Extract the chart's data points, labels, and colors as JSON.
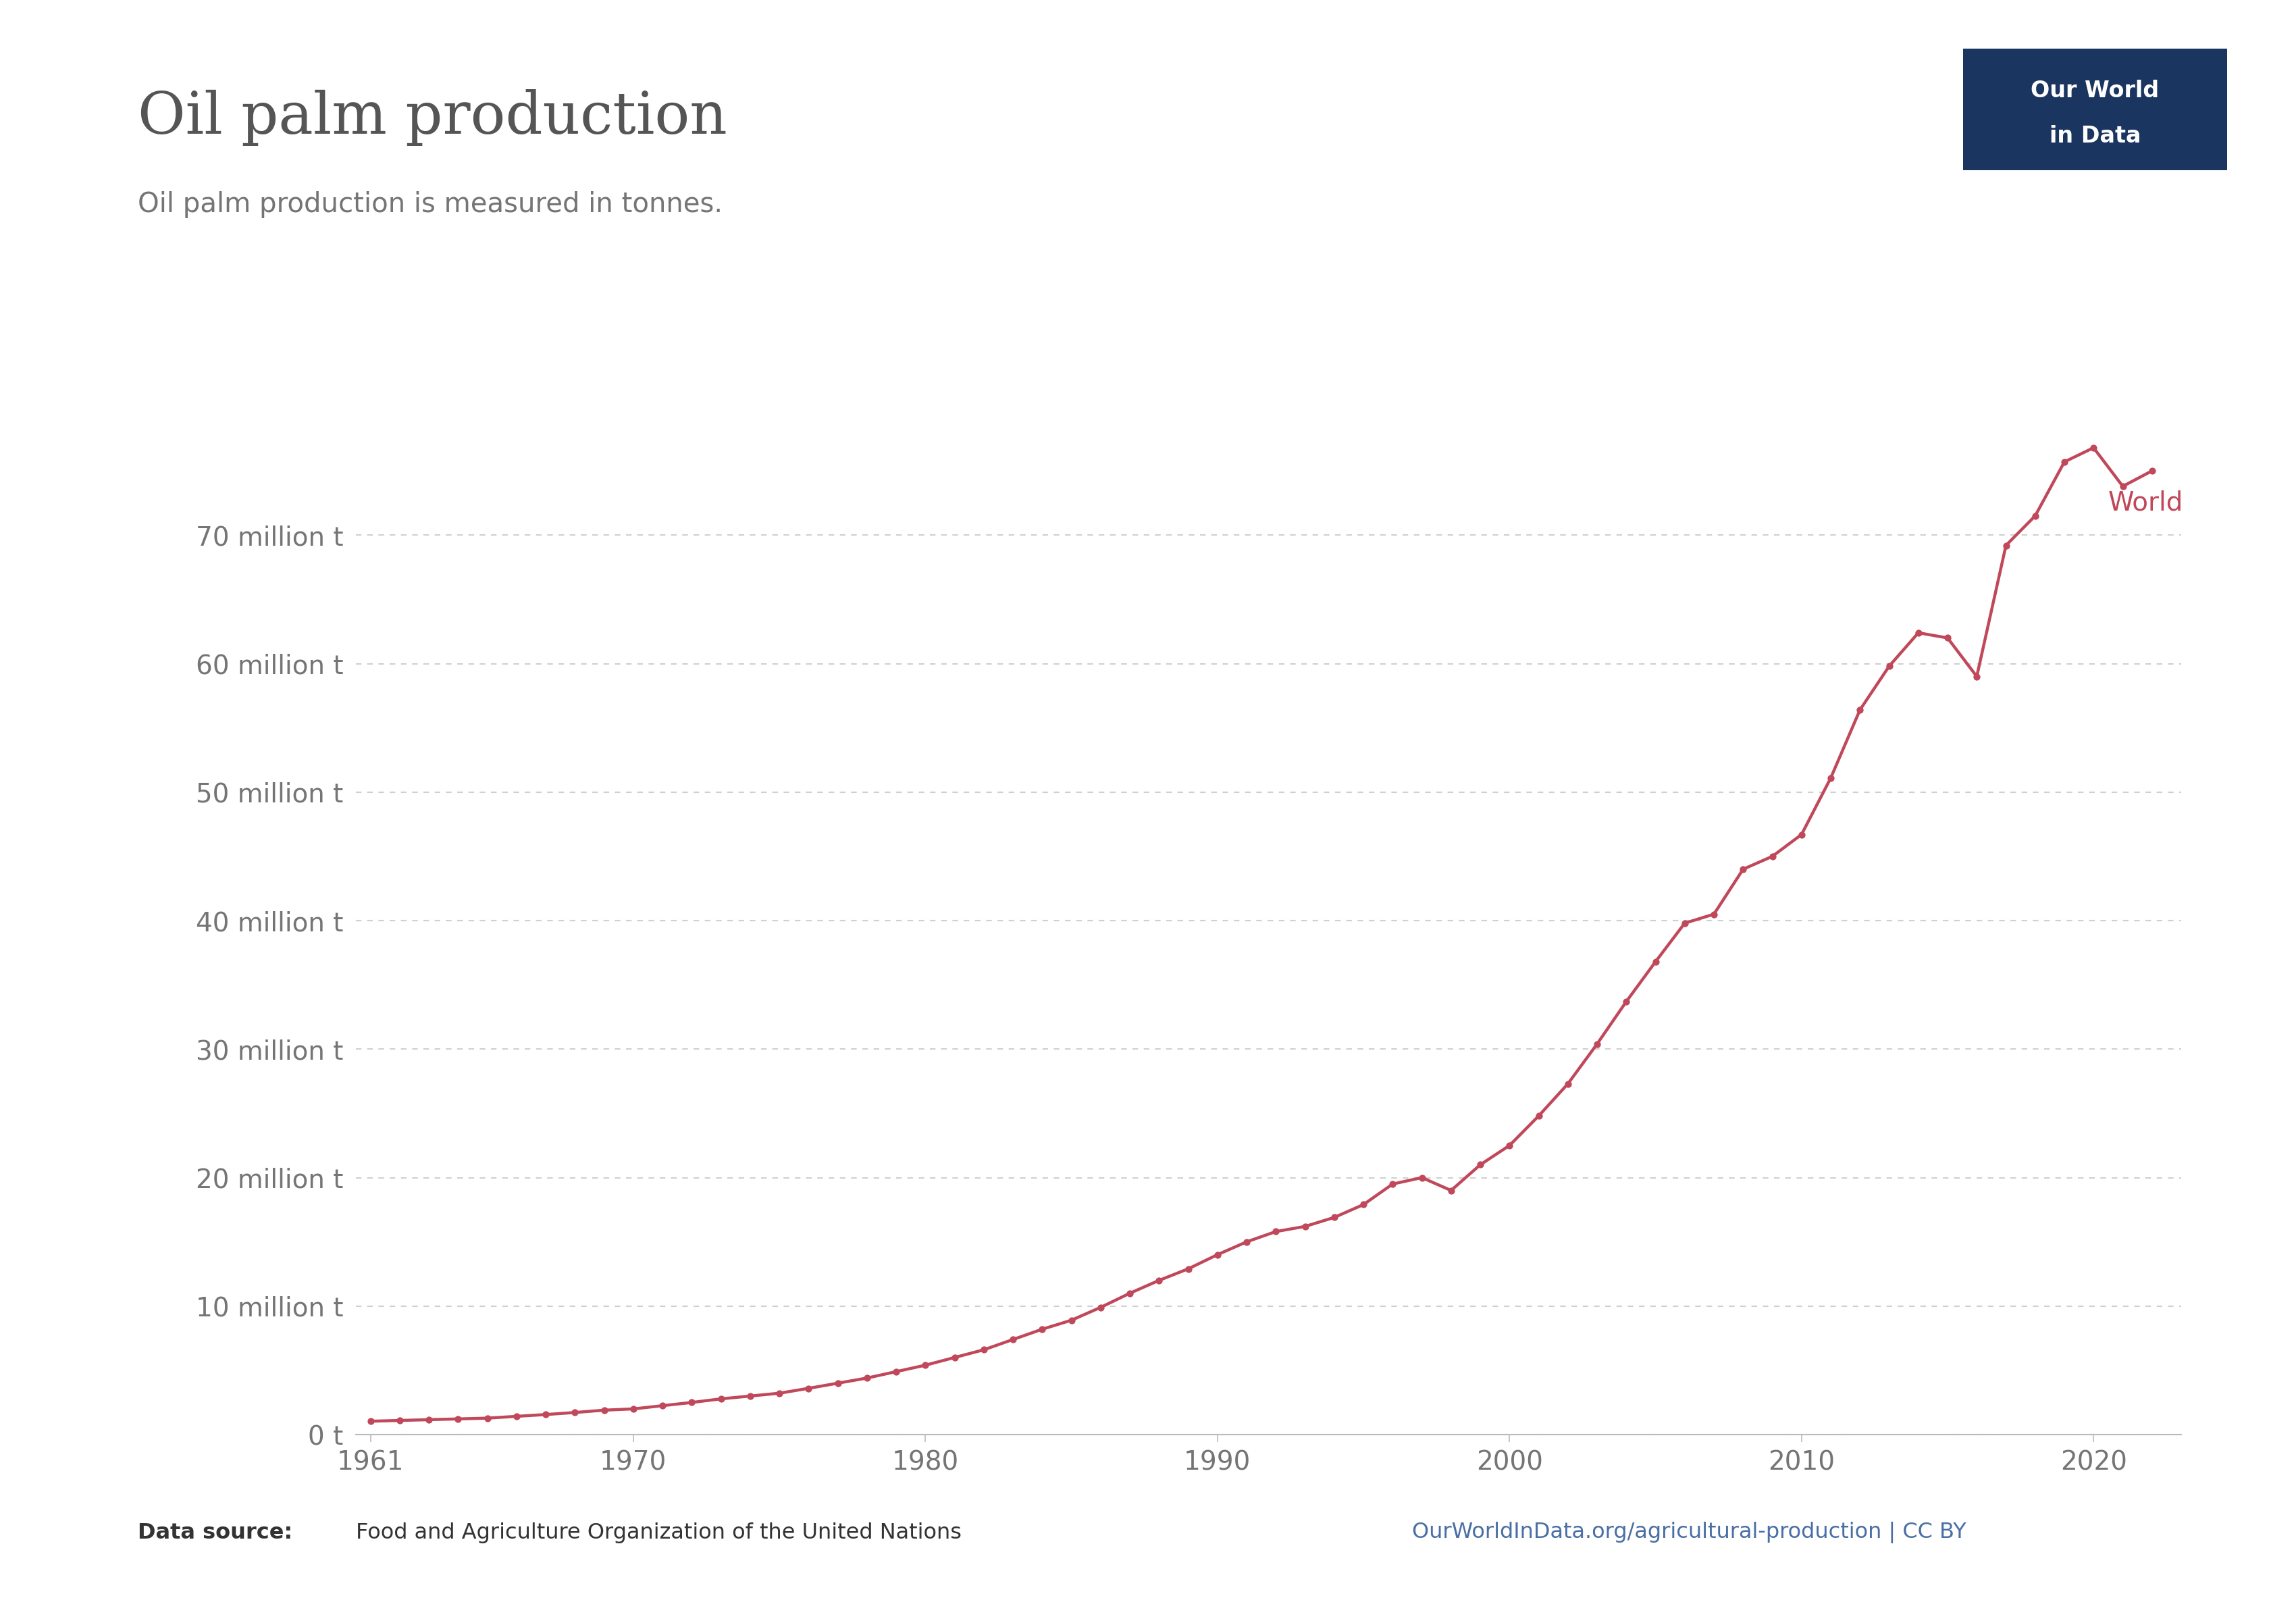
{
  "title": "Oil palm production",
  "subtitle": "Oil palm production is measured in tonnes.",
  "line_color": "#C0485A",
  "background_color": "#ffffff",
  "label_color": "#757575",
  "grid_color": "#d0d0d0",
  "series_label": "World",
  "years": [
    1961,
    1962,
    1963,
    1964,
    1965,
    1966,
    1967,
    1968,
    1969,
    1970,
    1971,
    1972,
    1973,
    1974,
    1975,
    1976,
    1977,
    1978,
    1979,
    1980,
    1981,
    1982,
    1983,
    1984,
    1985,
    1986,
    1987,
    1988,
    1989,
    1990,
    1991,
    1992,
    1993,
    1994,
    1995,
    1996,
    1997,
    1998,
    1999,
    2000,
    2001,
    2002,
    2003,
    2004,
    2005,
    2006,
    2007,
    2008,
    2009,
    2010,
    2011,
    2012,
    2013,
    2014,
    2015,
    2016,
    2017,
    2018,
    2019,
    2020,
    2021,
    2022
  ],
  "values_millions": [
    1.04,
    1.1,
    1.16,
    1.22,
    1.28,
    1.42,
    1.56,
    1.72,
    1.9,
    2.0,
    2.25,
    2.5,
    2.78,
    3.0,
    3.22,
    3.6,
    4.0,
    4.4,
    4.9,
    5.4,
    6.0,
    6.6,
    7.4,
    8.2,
    8.9,
    9.9,
    11.0,
    12.0,
    12.9,
    14.0,
    15.0,
    15.8,
    16.2,
    16.9,
    17.9,
    19.5,
    20.0,
    19.0,
    21.0,
    22.5,
    24.8,
    27.3,
    30.4,
    33.7,
    36.8,
    39.8,
    40.5,
    44.0,
    45.0,
    46.7,
    51.1,
    56.4,
    59.8,
    62.4,
    62.0,
    59.0,
    69.2,
    71.5,
    75.7,
    76.8,
    73.8,
    75.0
  ],
  "ylim": [
    0,
    82000000
  ],
  "yticks": [
    0,
    10000000,
    20000000,
    30000000,
    40000000,
    50000000,
    60000000,
    70000000
  ],
  "ytick_labels": [
    "0 t",
    "10 million t",
    "20 million t",
    "30 million t",
    "40 million t",
    "50 million t",
    "60 million t",
    "70 million t"
  ],
  "xlim": [
    1960.5,
    2023
  ],
  "xticks": [
    1961,
    1970,
    1980,
    1990,
    2000,
    2010,
    2020
  ],
  "logo_bg": "#1a3560",
  "logo_text1": "Our World",
  "logo_text2": "in Data",
  "data_source_bold": "Data source:",
  "data_source_normal": " Food and Agriculture Organization of the United Nations",
  "footer_link": "OurWorldInData.org/agricultural-production | CC BY",
  "world_label_year": 2020.5,
  "world_label_val_millions": 72.5
}
